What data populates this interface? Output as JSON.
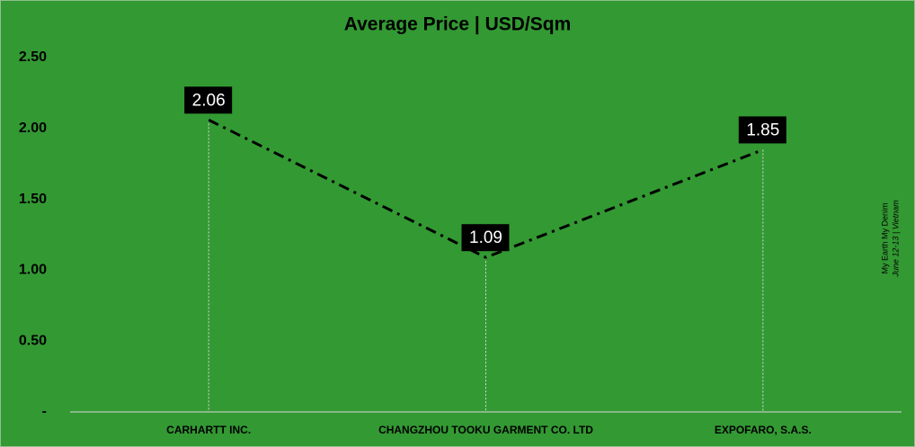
{
  "chart_data": {
    "type": "line",
    "title": "Average Price | USD/Sqm",
    "categories": [
      "CARHARTT INC.",
      "CHANGZHOU TOOKU GARMENT CO. LTD",
      "EXPOFARO, S.A.S."
    ],
    "series": [
      {
        "name": "Average Price",
        "color": "#000000",
        "values": [
          2.06,
          1.09,
          1.85
        ]
      }
    ],
    "ylim": [
      0,
      2.5
    ],
    "yticks": [
      {
        "value": 0,
        "label": "-"
      },
      {
        "value": 0.5,
        "label": "0.50"
      },
      {
        "value": 1,
        "label": "1.00"
      },
      {
        "value": 1.5,
        "label": "1.50"
      },
      {
        "value": 2,
        "label": "2.00"
      },
      {
        "value": 2.5,
        "label": "2.50"
      }
    ],
    "annotations": [
      "My Earth My Denim",
      "June 12-13 | Vietnam"
    ]
  }
}
